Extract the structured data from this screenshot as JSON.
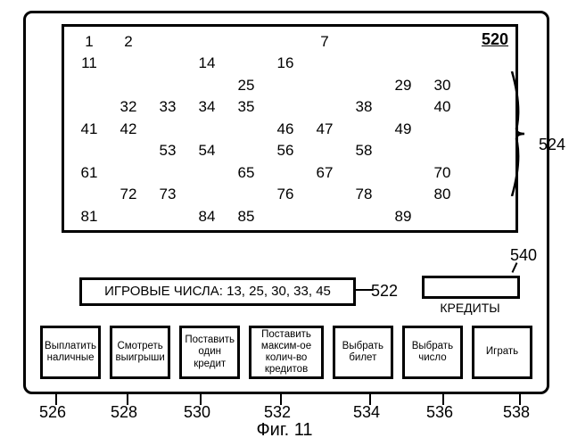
{
  "figure_label": "Фиг. 11",
  "ref_numbers": {
    "screen": "520",
    "board": "524",
    "game_numbers": "522",
    "credits": "540",
    "btn1": "526",
    "btn2": "528",
    "btn3": "530",
    "btn4": "532",
    "btn5": "534",
    "btn6": "536",
    "btn7": "538"
  },
  "board": {
    "rows": 9,
    "cols": 10,
    "font_size": 17,
    "visible_numbers": [
      1,
      2,
      7,
      11,
      14,
      16,
      25,
      29,
      30,
      32,
      33,
      34,
      35,
      38,
      40,
      41,
      42,
      46,
      47,
      49,
      53,
      54,
      56,
      58,
      61,
      65,
      67,
      70,
      72,
      73,
      76,
      78,
      80,
      81,
      84,
      85,
      89
    ]
  },
  "game_numbers": {
    "label": "ИГРОВЫЕ ЧИСЛА:",
    "values": [
      13,
      25,
      30,
      33,
      45
    ]
  },
  "credits": {
    "label": "КРЕДИТЫ",
    "value": ""
  },
  "buttons": [
    {
      "id": "payout-cash-button",
      "label": "Выплатить наличные"
    },
    {
      "id": "view-wins-button",
      "label": "Смотреть выигрыши"
    },
    {
      "id": "bet-one-button",
      "label": "Поставить один кредит"
    },
    {
      "id": "bet-max-button",
      "label": "Поставить максим-ое колич-во кредитов",
      "wide": true
    },
    {
      "id": "select-ticket-button",
      "label": "Выбрать билет"
    },
    {
      "id": "select-number-button",
      "label": "Выбрать число"
    },
    {
      "id": "play-button",
      "label": "Играть"
    }
  ],
  "style": {
    "border_color": "#000000",
    "background": "#ffffff",
    "font_family": "Arial"
  }
}
